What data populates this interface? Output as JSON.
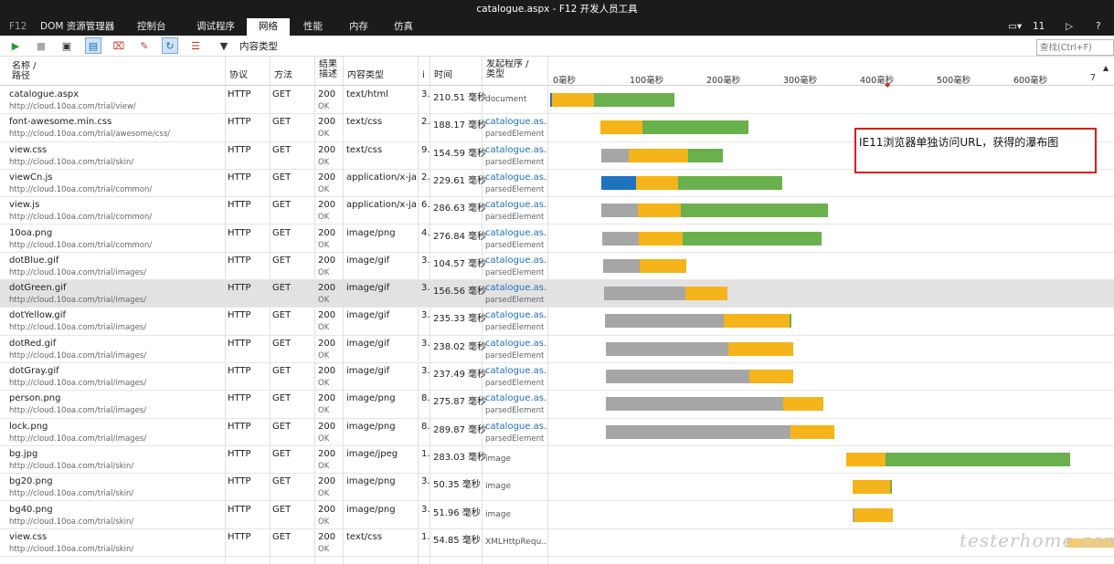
{
  "window": {
    "title": "catalogue.aspx - F12 开发人员工具"
  },
  "tabs": [
    {
      "label": "F12",
      "kind": "f12"
    },
    {
      "label": "DOM 资源管理器"
    },
    {
      "label": "控制台"
    },
    {
      "label": "调试程序"
    },
    {
      "label": "网络",
      "active": true
    },
    {
      "label": "性能"
    },
    {
      "label": "内存"
    },
    {
      "label": "仿真"
    }
  ],
  "tabbar_right": {
    "screens": "11",
    "console": "▷",
    "help": "?"
  },
  "toolbar": {
    "content_type_label": "内容类型",
    "find_placeholder": "查找(Ctrl+F)"
  },
  "columns": {
    "name": "名称 /",
    "path": "路径",
    "protocol": "协议",
    "method": "方法",
    "result": "结果",
    "desc": "描述",
    "content_type": "内容类型",
    "received": "i",
    "time": "时间",
    "initiator": "发起程序 /",
    "type": "类型"
  },
  "timeline_ticks": [
    "0毫秒",
    "100毫秒",
    "200毫秒",
    "300毫秒",
    "400毫秒",
    "500毫秒",
    "600毫秒",
    "7"
  ],
  "annotation": "IE11浏览器单独访问URL，获得的瀑布图",
  "watermark": "testerhome.com",
  "colors": {
    "wait": "#a6a6a6",
    "request": "#f4b41a",
    "receive": "#6ab04c",
    "connect": "#1e73be"
  },
  "rows": [
    {
      "name": "catalogue.aspx",
      "path": "http://cloud.10oa.com/trial/view/",
      "protocol": "HTTP",
      "method": "GET",
      "status": "200",
      "status_text": "OK",
      "content_type": "text/html",
      "received": "3.",
      "time": "210.51 毫秒",
      "initiator": "document",
      "initiator_type": "",
      "segments": [
        {
          "kind": "connect",
          "start": 0,
          "dur": 2
        },
        {
          "kind": "request",
          "start": 2,
          "dur": 55
        },
        {
          "kind": "receive",
          "start": 57,
          "dur": 105
        }
      ]
    },
    {
      "name": "font-awesome.min.css",
      "path": "http://cloud.10oa.com/trial/awesome/css/",
      "protocol": "HTTP",
      "method": "GET",
      "status": "200",
      "status_text": "OK",
      "content_type": "text/css",
      "received": "2.",
      "time": "188.17 毫秒",
      "initiator": "catalogue.as...",
      "initiator_type": "parsedElement",
      "segments": [
        {
          "kind": "request",
          "start": 65,
          "dur": 55
        },
        {
          "kind": "receive",
          "start": 120,
          "dur": 138
        }
      ]
    },
    {
      "name": "view.css",
      "path": "http://cloud.10oa.com/trial/skin/",
      "protocol": "HTTP",
      "method": "GET",
      "status": "200",
      "status_text": "OK",
      "content_type": "text/css",
      "received": "9.",
      "time": "154.59 毫秒",
      "initiator": "catalogue.as...",
      "initiator_type": "parsedElement",
      "segments": [
        {
          "kind": "wait",
          "start": 66,
          "dur": 36
        },
        {
          "kind": "request",
          "start": 102,
          "dur": 78
        },
        {
          "kind": "receive",
          "start": 180,
          "dur": 45
        }
      ]
    },
    {
      "name": "viewCn.js",
      "path": "http://cloud.10oa.com/trial/common/",
      "protocol": "HTTP",
      "method": "GET",
      "status": "200",
      "status_text": "OK",
      "content_type": "application/x-ja...",
      "received": "2.",
      "time": "229.61 毫秒",
      "initiator": "catalogue.as...",
      "initiator_type": "parsedElement",
      "segments": [
        {
          "kind": "connect",
          "start": 67,
          "dur": 45
        },
        {
          "kind": "request",
          "start": 112,
          "dur": 55
        },
        {
          "kind": "receive",
          "start": 167,
          "dur": 135
        }
      ]
    },
    {
      "name": "view.js",
      "path": "http://cloud.10oa.com/trial/common/",
      "protocol": "HTTP",
      "method": "GET",
      "status": "200",
      "status_text": "OK",
      "content_type": "application/x-ja...",
      "received": "6.",
      "time": "286.63 毫秒",
      "initiator": "catalogue.as...",
      "initiator_type": "parsedElement",
      "segments": [
        {
          "kind": "wait",
          "start": 67,
          "dur": 47
        },
        {
          "kind": "request",
          "start": 114,
          "dur": 56
        },
        {
          "kind": "receive",
          "start": 170,
          "dur": 192
        }
      ]
    },
    {
      "name": "10oa.png",
      "path": "http://cloud.10oa.com/trial/common/",
      "protocol": "HTTP",
      "method": "GET",
      "status": "200",
      "status_text": "OK",
      "content_type": "image/png",
      "received": "4.",
      "time": "276.84 毫秒",
      "initiator": "catalogue.as...",
      "initiator_type": "parsedElement",
      "segments": [
        {
          "kind": "wait",
          "start": 68,
          "dur": 47
        },
        {
          "kind": "request",
          "start": 115,
          "dur": 57
        },
        {
          "kind": "receive",
          "start": 172,
          "dur": 181
        }
      ]
    },
    {
      "name": "dotBlue.gif",
      "path": "http://cloud.10oa.com/trial/images/",
      "protocol": "HTTP",
      "method": "GET",
      "status": "200",
      "status_text": "OK",
      "content_type": "image/gif",
      "received": "3.",
      "time": "104.57 毫秒",
      "initiator": "catalogue.as...",
      "initiator_type": "parsedElement",
      "segments": [
        {
          "kind": "wait",
          "start": 69,
          "dur": 48
        },
        {
          "kind": "request",
          "start": 117,
          "dur": 60
        }
      ]
    },
    {
      "name": "dotGreen.gif",
      "path": "http://cloud.10oa.com/trial/images/",
      "protocol": "HTTP",
      "method": "GET",
      "status": "200",
      "status_text": "OK",
      "content_type": "image/gif",
      "received": "3.",
      "time": "156.56 毫秒",
      "initiator": "catalogue.as...",
      "initiator_type": "parsedElement",
      "selected": true,
      "segments": [
        {
          "kind": "wait",
          "start": 70,
          "dur": 106
        },
        {
          "kind": "request",
          "start": 176,
          "dur": 55
        }
      ]
    },
    {
      "name": "dotYellow.gif",
      "path": "http://cloud.10oa.com/trial/images/",
      "protocol": "HTTP",
      "method": "GET",
      "status": "200",
      "status_text": "OK",
      "content_type": "image/gif",
      "received": "3.",
      "time": "235.33 毫秒",
      "initiator": "catalogue.as...",
      "initiator_type": "parsedElement",
      "segments": [
        {
          "kind": "wait",
          "start": 71,
          "dur": 155
        },
        {
          "kind": "request",
          "start": 226,
          "dur": 85
        },
        {
          "kind": "receive",
          "start": 311,
          "dur": 2
        }
      ]
    },
    {
      "name": "dotRed.gif",
      "path": "http://cloud.10oa.com/trial/images/",
      "protocol": "HTTP",
      "method": "GET",
      "status": "200",
      "status_text": "OK",
      "content_type": "image/gif",
      "received": "3.",
      "time": "238.02 毫秒",
      "initiator": "catalogue.as...",
      "initiator_type": "parsedElement",
      "segments": [
        {
          "kind": "wait",
          "start": 72,
          "dur": 160
        },
        {
          "kind": "request",
          "start": 232,
          "dur": 84
        }
      ]
    },
    {
      "name": "dotGray.gif",
      "path": "http://cloud.10oa.com/trial/images/",
      "protocol": "HTTP",
      "method": "GET",
      "status": "200",
      "status_text": "OK",
      "content_type": "image/gif",
      "received": "3.",
      "time": "237.49 毫秒",
      "initiator": "catalogue.as...",
      "initiator_type": "parsedElement",
      "segments": [
        {
          "kind": "wait",
          "start": 72,
          "dur": 187
        },
        {
          "kind": "request",
          "start": 259,
          "dur": 57
        }
      ]
    },
    {
      "name": "person.png",
      "path": "http://cloud.10oa.com/trial/images/",
      "protocol": "HTTP",
      "method": "GET",
      "status": "200",
      "status_text": "OK",
      "content_type": "image/png",
      "received": "8.",
      "time": "275.87 毫秒",
      "initiator": "catalogue.as...",
      "initiator_type": "parsedElement",
      "segments": [
        {
          "kind": "wait",
          "start": 72,
          "dur": 231
        },
        {
          "kind": "request",
          "start": 303,
          "dur": 53
        }
      ]
    },
    {
      "name": "lock.png",
      "path": "http://cloud.10oa.com/trial/images/",
      "protocol": "HTTP",
      "method": "GET",
      "status": "200",
      "status_text": "OK",
      "content_type": "image/png",
      "received": "8.",
      "time": "289.87 毫秒",
      "initiator": "catalogue.as...",
      "initiator_type": "parsedElement",
      "segments": [
        {
          "kind": "wait",
          "start": 73,
          "dur": 240
        },
        {
          "kind": "request",
          "start": 313,
          "dur": 57
        }
      ]
    },
    {
      "name": "bg.jpg",
      "path": "http://cloud.10oa.com/trial/skin/",
      "protocol": "HTTP",
      "method": "GET",
      "status": "200",
      "status_text": "OK",
      "content_type": "image/jpeg",
      "received": "1.",
      "time": "283.03 毫秒",
      "initiator": "image",
      "initiator_type": "",
      "segments": [
        {
          "kind": "request",
          "start": 385,
          "dur": 51
        },
        {
          "kind": "receive",
          "start": 436,
          "dur": 240
        }
      ]
    },
    {
      "name": "bg20.png",
      "path": "http://cloud.10oa.com/trial/skin/",
      "protocol": "HTTP",
      "method": "GET",
      "status": "200",
      "status_text": "OK",
      "content_type": "image/png",
      "received": "3.",
      "time": "50.35 毫秒",
      "initiator": "image",
      "initiator_type": "",
      "segments": [
        {
          "kind": "request",
          "start": 393,
          "dur": 49
        },
        {
          "kind": "receive",
          "start": 442,
          "dur": 2
        }
      ]
    },
    {
      "name": "bg40.png",
      "path": "http://cloud.10oa.com/trial/skin/",
      "protocol": "HTTP",
      "method": "GET",
      "status": "200",
      "status_text": "OK",
      "content_type": "image/png",
      "received": "3.",
      "time": "51.96 毫秒",
      "initiator": "image",
      "initiator_type": "",
      "segments": [
        {
          "kind": "wait",
          "start": 394,
          "dur": 2
        },
        {
          "kind": "request",
          "start": 396,
          "dur": 50
        }
      ]
    },
    {
      "name": "view.css",
      "path": "http://cloud.10oa.com/trial/skin/",
      "protocol": "HTTP",
      "method": "GET",
      "status": "200",
      "status_text": "OK",
      "content_type": "text/css",
      "received": "1.",
      "time": "54.85 毫秒",
      "initiator": "XMLHttpRequ...",
      "initiator_type": "",
      "segments": []
    }
  ]
}
